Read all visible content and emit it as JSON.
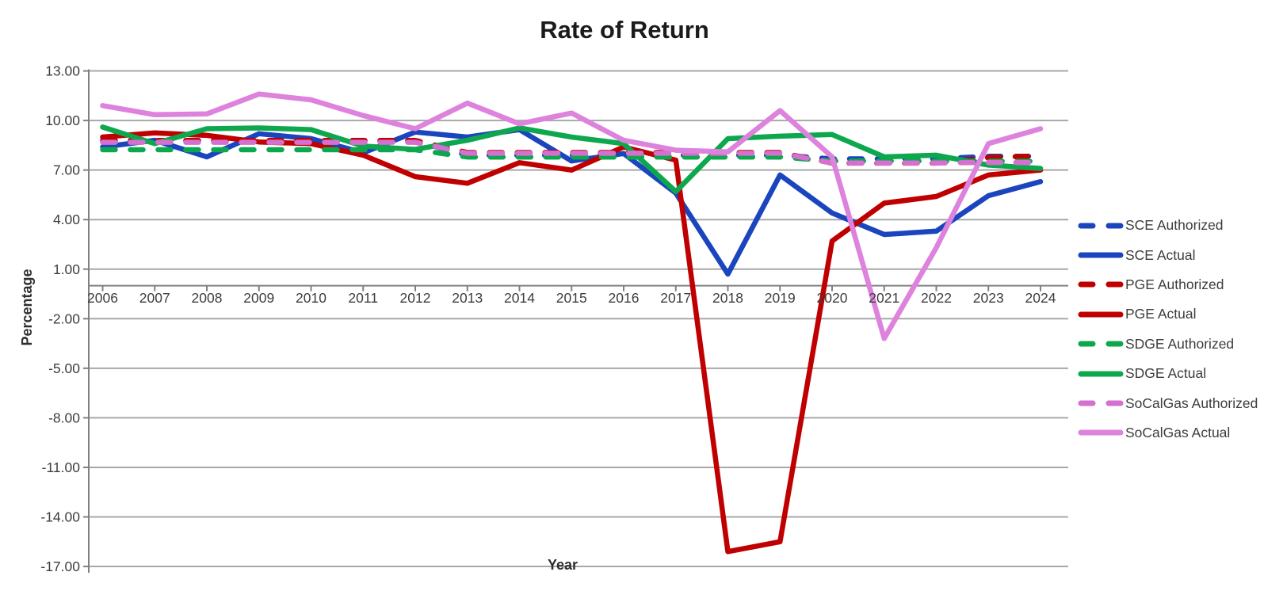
{
  "chart_data": {
    "type": "line",
    "title": "Rate of Return",
    "xlabel": "Year",
    "ylabel": "Percentage",
    "x": [
      2006,
      2007,
      2008,
      2009,
      2010,
      2011,
      2012,
      2013,
      2014,
      2015,
      2016,
      2017,
      2018,
      2019,
      2020,
      2021,
      2022,
      2023,
      2024
    ],
    "x_tick_labels": [
      "2006",
      "2007",
      "2008",
      "2009",
      "2010",
      "2011",
      "2012",
      "2013",
      "2014",
      "2015",
      "2016",
      "2017",
      "2018",
      "2019",
      "2020",
      "2021",
      "2022",
      "2023",
      "2024"
    ],
    "y_tick_labels": [
      "13.00",
      "10.00",
      "7.00",
      "4.00",
      "1.00",
      "-2.00",
      "-5.00",
      "-8.00",
      "-11.00",
      "-14.00",
      "-17.00"
    ],
    "y_ticks": [
      13,
      10,
      7,
      4,
      1,
      -2,
      -5,
      -8,
      -11,
      -14,
      -17
    ],
    "ylim": [
      -17,
      13
    ],
    "grid": true,
    "legend_position": "right",
    "colors": {
      "grid": "#A8A8A8",
      "axis": "#808080",
      "sce": "#1B45BE",
      "pge": "#C00000",
      "sdge": "#0DA84E",
      "socalgas_dash": "#D470D0",
      "socalgas_solid": "#DD82DD"
    },
    "series": [
      {
        "name": "SCE Authorized",
        "color": "#1B45BE",
        "style": "dashed",
        "values": [
          8.77,
          8.77,
          8.75,
          8.75,
          8.75,
          8.75,
          8.75,
          7.9,
          7.9,
          7.9,
          7.9,
          7.9,
          7.9,
          7.9,
          7.68,
          7.68,
          7.68,
          7.83,
          7.83
        ]
      },
      {
        "name": "SCE Actual",
        "color": "#1B45BE",
        "style": "solid",
        "values": [
          8.4,
          8.8,
          7.8,
          9.2,
          8.9,
          8.05,
          9.3,
          9.0,
          9.45,
          7.55,
          8.0,
          5.6,
          0.7,
          6.7,
          4.4,
          3.1,
          3.3,
          5.45,
          6.3
        ]
      },
      {
        "name": "PGE Authorized",
        "color": "#C00000",
        "style": "dashed",
        "values": [
          8.79,
          8.79,
          8.79,
          8.79,
          8.79,
          8.79,
          8.79,
          8.06,
          8.06,
          8.06,
          8.06,
          8.06,
          8.06,
          8.06,
          7.42,
          7.42,
          7.42,
          7.76,
          7.86
        ]
      },
      {
        "name": "PGE Actual",
        "color": "#C00000",
        "style": "solid",
        "values": [
          9.0,
          9.25,
          9.1,
          8.7,
          8.6,
          7.9,
          6.6,
          6.2,
          7.45,
          7.0,
          8.4,
          7.6,
          -16.1,
          -15.5,
          2.7,
          5.0,
          5.4,
          6.7,
          7.0
        ]
      },
      {
        "name": "SDGE Authorized",
        "color": "#0DA84E",
        "style": "dashed",
        "values": [
          8.23,
          8.23,
          8.23,
          8.23,
          8.23,
          8.23,
          8.23,
          7.79,
          7.79,
          7.79,
          7.79,
          7.79,
          7.79,
          7.79,
          7.55,
          7.55,
          7.55,
          7.53,
          7.53
        ]
      },
      {
        "name": "SDGE Actual",
        "color": "#0DA84E",
        "style": "solid",
        "values": [
          9.6,
          8.6,
          9.5,
          9.55,
          9.45,
          8.45,
          8.25,
          8.8,
          9.55,
          9.0,
          8.6,
          5.7,
          8.9,
          9.05,
          9.15,
          7.8,
          7.9,
          7.3,
          7.1
        ]
      },
      {
        "name": "SoCalGas Authorized",
        "color": "#D470D0",
        "style": "dashed",
        "values": [
          8.68,
          8.68,
          8.68,
          8.68,
          8.68,
          8.68,
          8.68,
          8.02,
          8.02,
          8.02,
          8.02,
          8.02,
          8.02,
          8.02,
          7.43,
          7.43,
          7.43,
          7.46,
          7.46
        ]
      },
      {
        "name": "SoCalGas Actual",
        "color": "#DD82DD",
        "style": "solid",
        "values": [
          10.9,
          10.35,
          10.4,
          11.6,
          11.25,
          10.3,
          9.5,
          11.05,
          9.8,
          10.45,
          8.8,
          8.2,
          8.1,
          10.6,
          7.8,
          -3.2,
          2.3,
          8.6,
          9.5
        ]
      }
    ]
  }
}
